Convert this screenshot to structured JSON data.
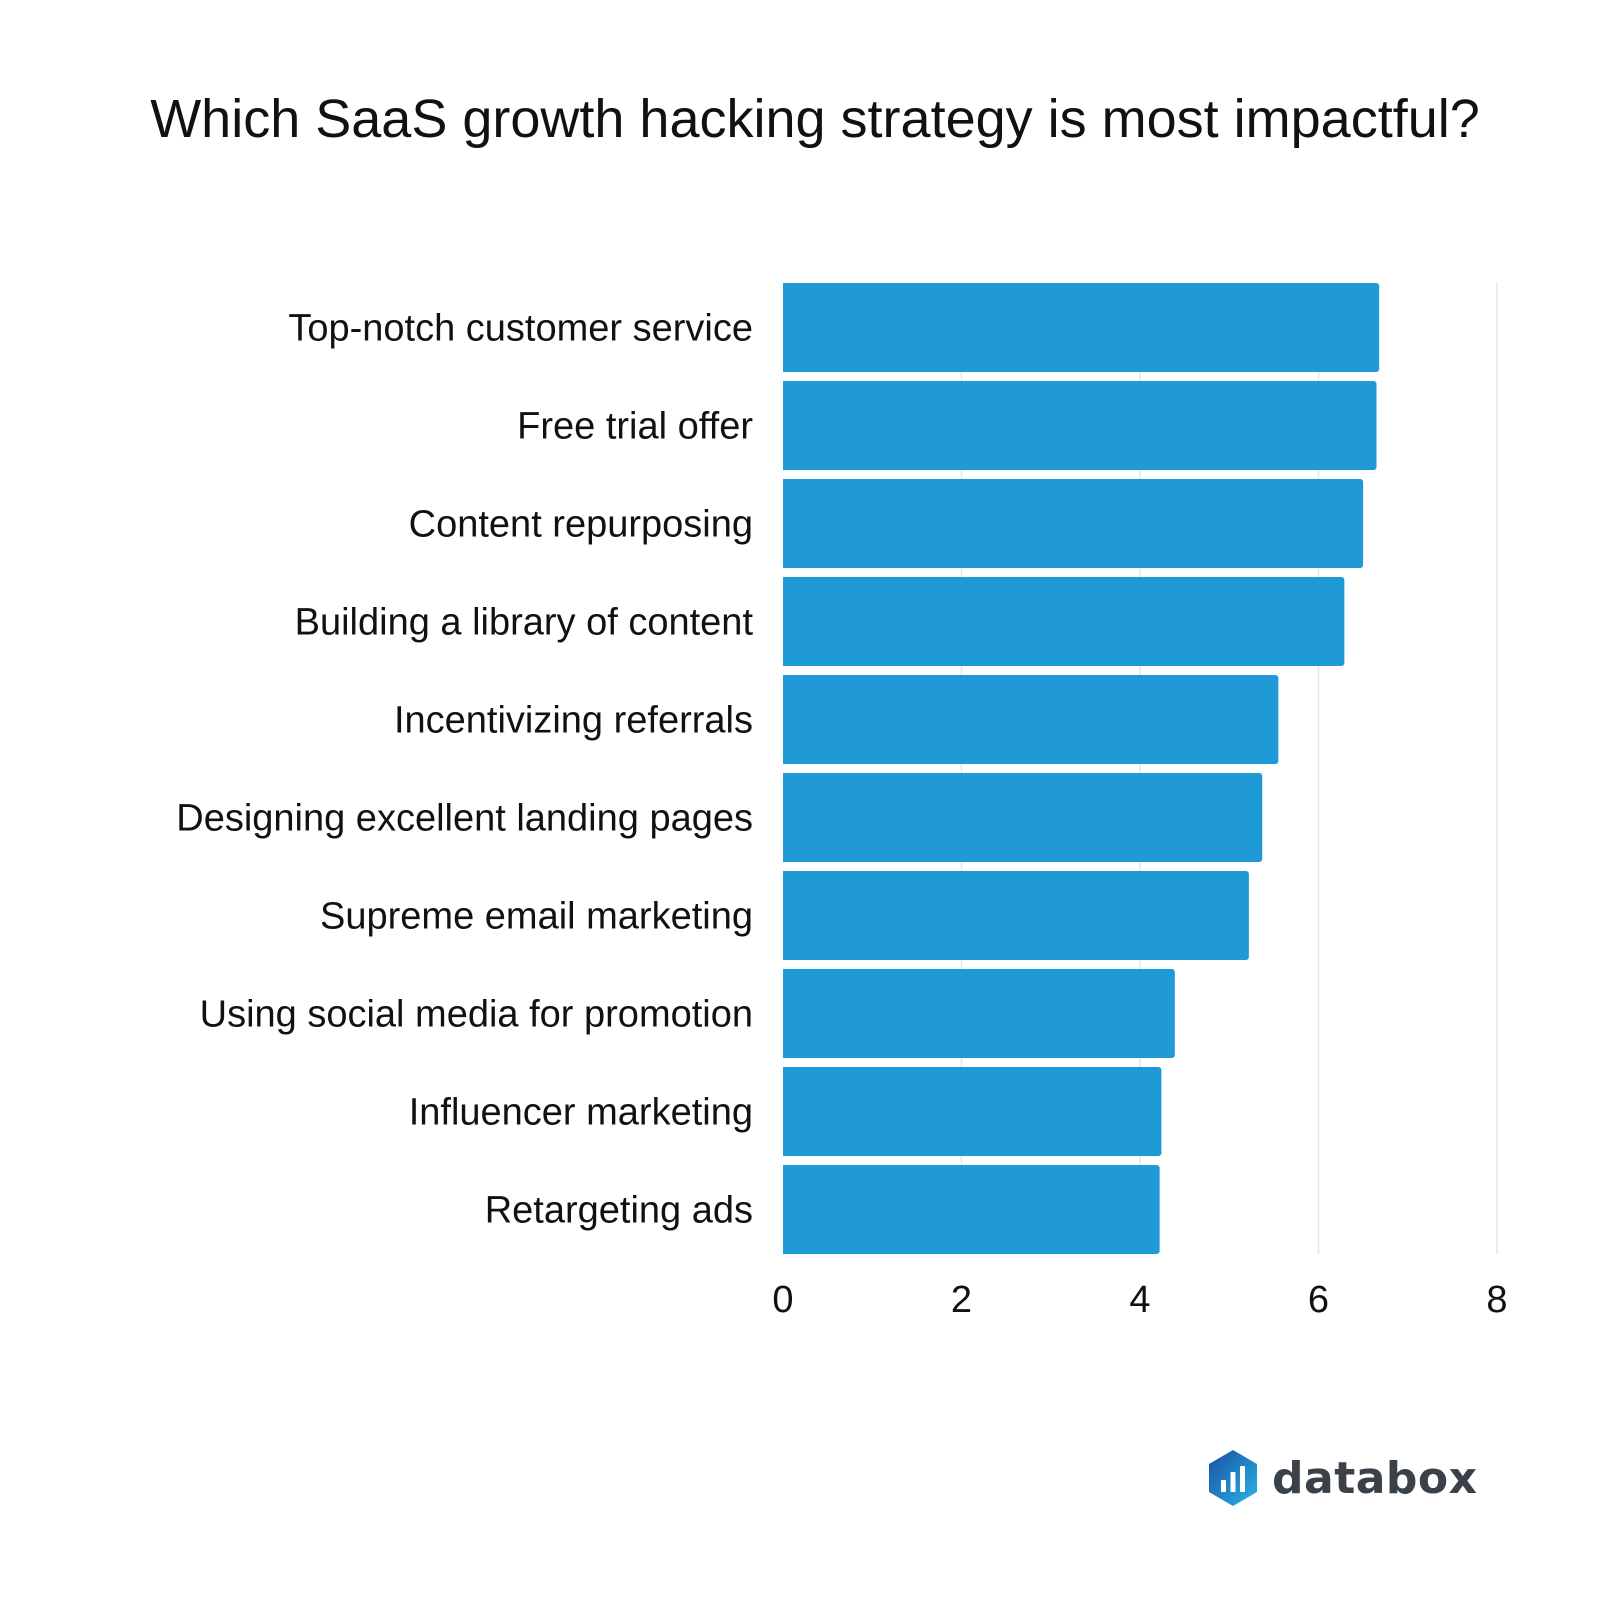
{
  "title": "Which SaaS growth hacking strategy is most impactful?",
  "brand": {
    "name": "databox",
    "icon": "databox-logo-icon"
  },
  "colors": {
    "bar": "#1f9ad6",
    "grid": "#e6e6e6",
    "text": "#111111",
    "logo_dark": "#1a4fa3",
    "logo_light": "#28b5e8"
  },
  "chart_data": {
    "type": "bar",
    "orientation": "horizontal",
    "categories": [
      "Top-notch customer service",
      "Free trial offer",
      "Content repurposing",
      "Building a library of content",
      "Incentivizing referrals",
      "Designing excellent landing pages",
      "Supreme email marketing",
      "Using social media for promotion",
      "Influencer marketing",
      "Retargeting ads"
    ],
    "values": [
      6.68,
      6.65,
      6.5,
      6.29,
      5.55,
      5.37,
      5.22,
      4.39,
      4.24,
      4.22
    ],
    "title": "Which SaaS growth hacking strategy is most impactful?",
    "xlabel": "",
    "ylabel": "",
    "xlim": [
      0,
      8
    ],
    "xticks": [
      "0",
      "2",
      "4",
      "6",
      "8"
    ],
    "grid": true,
    "legend": "none"
  }
}
